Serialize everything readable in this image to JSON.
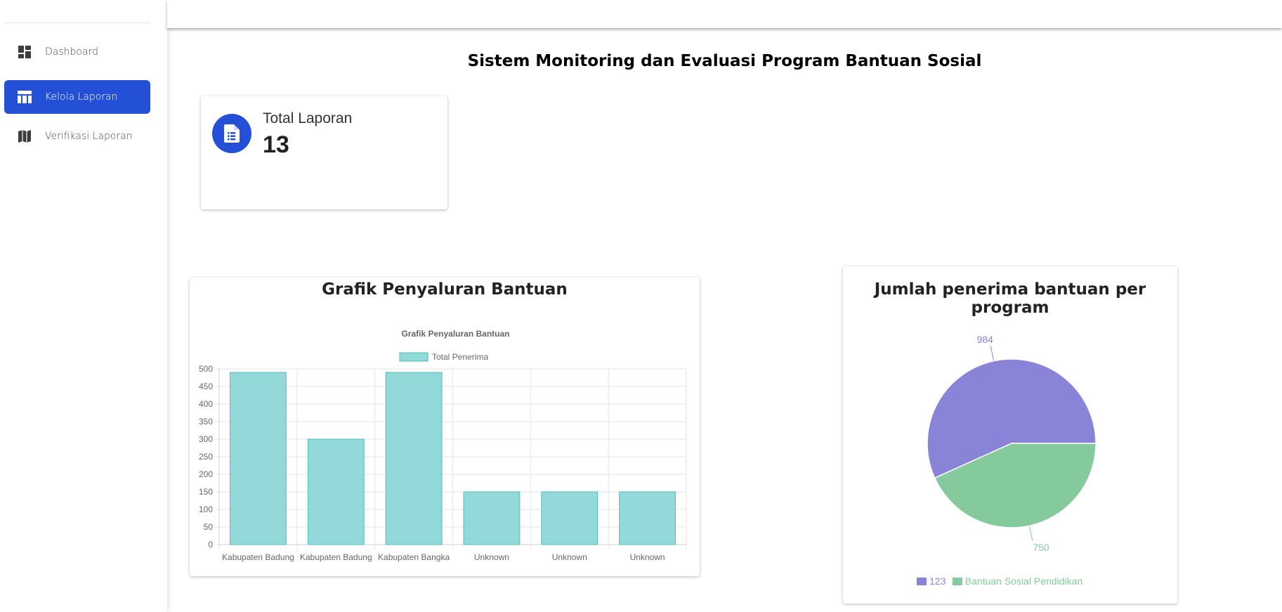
{
  "sidebar": {
    "items": [
      {
        "label": "Dashboard",
        "icon": "dashboard-icon"
      },
      {
        "label": "Kelola Laporan",
        "icon": "table-icon",
        "active": true
      },
      {
        "label": "Verifikasi Laporan",
        "icon": "map-icon"
      }
    ]
  },
  "page": {
    "title": "Sistem Monitoring dan Evaluasi Program Bantuan Sosial"
  },
  "stat": {
    "label": "Total Laporan",
    "value": "13",
    "icon": "document-icon"
  },
  "bar_panel": {
    "title": "Grafik Penyaluran Bantuan"
  },
  "pie_panel": {
    "title": "Jumlah penerima bantuan per program"
  },
  "colors": {
    "accent": "#2450d8",
    "bar_fill": "#93d9d9",
    "bar_stroke": "#4bc0c0",
    "pie_purple": "#8a84d8",
    "pie_green": "#84ca9c"
  },
  "chart_data": [
    {
      "type": "bar",
      "title": "Grafik Penyaluran Bantuan",
      "categories": [
        "Kabupaten Badung",
        "Kabupaten Badung",
        "Kabupaten Bangka",
        "Unknown",
        "Unknown",
        "Unknown"
      ],
      "series": [
        {
          "name": "Total Penerima",
          "values": [
            490,
            300,
            490,
            150,
            150,
            150
          ]
        }
      ],
      "ylim": [
        0,
        500
      ],
      "yticks": [
        0,
        50,
        100,
        150,
        200,
        250,
        300,
        350,
        400,
        450,
        500
      ],
      "legend": "top",
      "grid": true
    },
    {
      "type": "pie",
      "labels": [
        "123",
        "Bantuan Sosial Pendidikan"
      ],
      "values": [
        984,
        750
      ],
      "legend": "bottom"
    }
  ]
}
